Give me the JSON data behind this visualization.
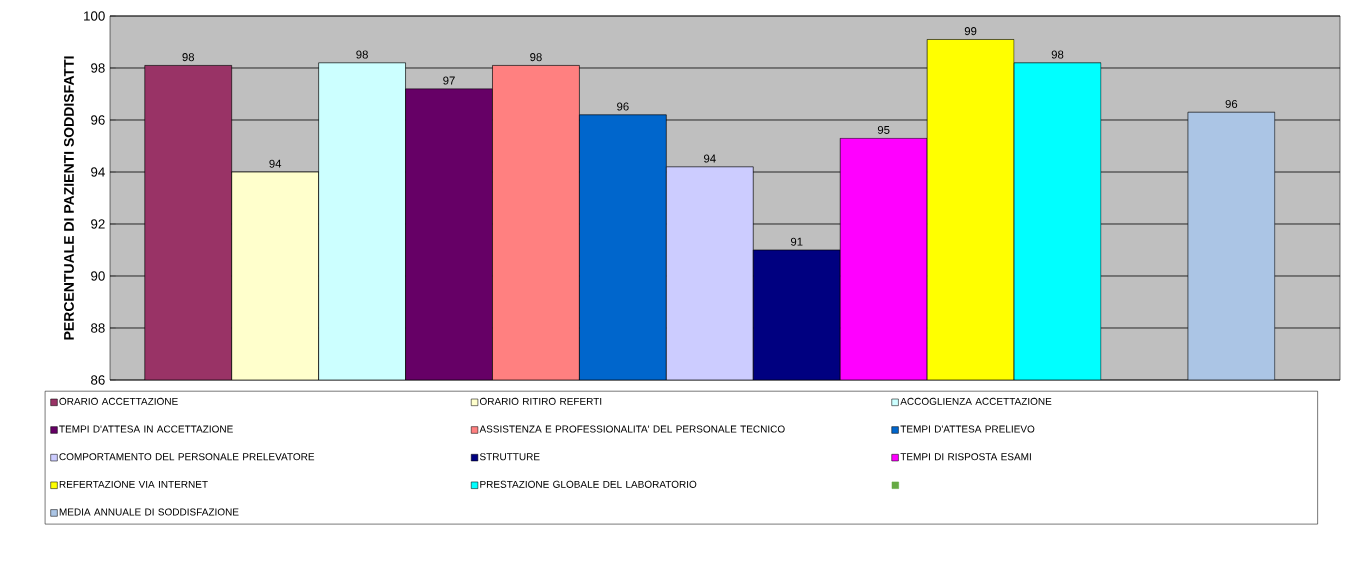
{
  "chart_data": {
    "type": "bar",
    "ylabel": "PERCENTUALE DI PAZIENTI SODDISFATTI",
    "categories": [
      null
    ],
    "series": [
      {
        "name": "ORARIO ACCETTAZIONE",
        "color": "#993366",
        "values": [
          98.1
        ],
        "value_labels": [
          "98"
        ]
      },
      {
        "name": "ORARIO RITIRO REFERTI",
        "color": "#ffffcc",
        "values": [
          94.0
        ],
        "value_labels": [
          "94"
        ]
      },
      {
        "name": "ACCOGLIENZA ACCETTAZIONE",
        "color": "#ccffff",
        "values": [
          98.2
        ],
        "value_labels": [
          "98"
        ]
      },
      {
        "name": "TEMPI D'ATTESA IN  ACCETTAZIONE",
        "color": "#660066",
        "values": [
          97.2
        ],
        "value_labels": [
          "97"
        ]
      },
      {
        "name": "ASSISTENZA E PROFESSIONALITA' DEL PERSONALE TECNICO",
        "color": "#ff8080",
        "values": [
          98.1
        ],
        "value_labels": [
          "98"
        ]
      },
      {
        "name": "TEMPI D'ATTESA PRELIEVO",
        "color": "#0066cc",
        "values": [
          96.2
        ],
        "value_labels": [
          "96"
        ]
      },
      {
        "name": "COMPORTAMENTO DEL PERSONALE PRELEVATORE",
        "color": "#ccccff",
        "values": [
          94.2
        ],
        "value_labels": [
          "94"
        ]
      },
      {
        "name": "STRUTTURE",
        "color": "#000080",
        "values": [
          91.0
        ],
        "value_labels": [
          "91"
        ]
      },
      {
        "name": "TEMPI DI RISPOSTA ESAMI",
        "color": "#ff00ff",
        "values": [
          95.3
        ],
        "value_labels": [
          "95"
        ]
      },
      {
        "name": "REFERTAZIONE VIA INTERNET",
        "color": "#ffff00",
        "values": [
          99.1
        ],
        "value_labels": [
          "99"
        ]
      },
      {
        "name": "PRESTAZIONE GLOBALE DEL LABORATORIO",
        "color": "#00ffff",
        "values": [
          98.2
        ],
        "value_labels": [
          "98"
        ]
      },
      {
        "color": "#66aa44",
        "values": [
          null
        ]
      },
      {
        "name": "MEDIA ANNUALE DI SODDISFAZIONE",
        "color": "#abc5e5",
        "values": [
          96.3
        ],
        "value_labels": [
          "96"
        ]
      }
    ],
    "ylim": [
      86,
      100
    ],
    "yticks": [
      86,
      88,
      90,
      92,
      94,
      96,
      98,
      100
    ],
    "grid": "y",
    "legend": "bottom",
    "tick_labels": "y"
  }
}
